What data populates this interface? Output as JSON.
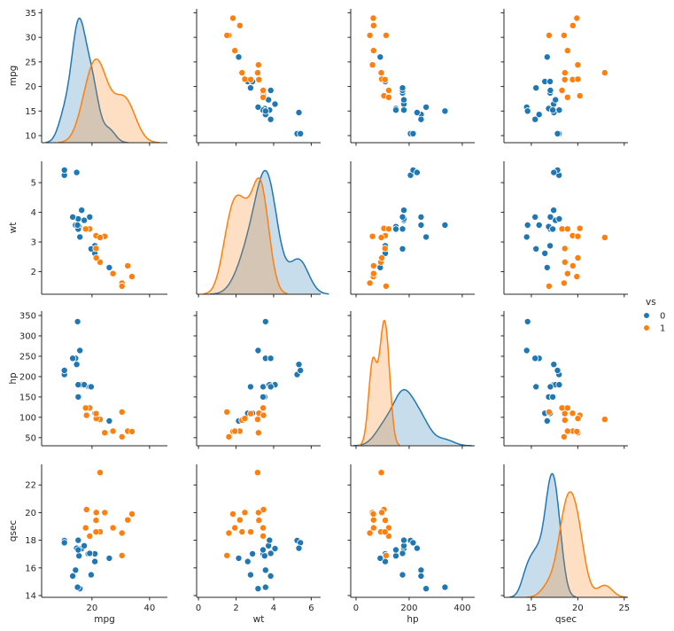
{
  "chart_data": {
    "type": "scatter",
    "subtype": "pairplot",
    "variables": [
      "mpg",
      "wt",
      "hp",
      "qsec"
    ],
    "hue": "vs",
    "legend": {
      "title": "vs",
      "entries": [
        "0",
        "1"
      ],
      "placement": "right"
    },
    "colors": {
      "0": "#1f77b4",
      "1": "#ff7f0e"
    },
    "diagonal": "kde",
    "grid": false,
    "axes": {
      "mpg": {
        "lim": [
          2.5,
          46.2
        ],
        "ticks": [
          20,
          40
        ],
        "yticks": [
          10,
          15,
          20,
          25,
          30,
          35
        ],
        "ylim": [
          8.56,
          35.8
        ]
      },
      "wt": {
        "lim": [
          -0.1,
          6.5
        ],
        "ticks": [
          0,
          2,
          4,
          6
        ],
        "yticks": [
          2,
          3,
          4,
          5
        ],
        "ylim": [
          1.24,
          5.72
        ]
      },
      "hp": {
        "lim": [
          -20,
          447
        ],
        "ticks": [
          0,
          200,
          400
        ],
        "yticks": [
          50,
          100,
          150,
          200,
          250,
          300,
          350
        ],
        "ylim": [
          30,
          361
        ]
      },
      "qsec": {
        "lim": [
          12.05,
          25.4
        ],
        "ticks": [
          15,
          20,
          25
        ],
        "yticks": [
          14,
          16,
          18,
          20,
          22
        ],
        "ylim": [
          13.87,
          23.49
        ]
      }
    },
    "records": [
      [
        21.0,
        2.62,
        110,
        16.46,
        0
      ],
      [
        21.0,
        2.875,
        110,
        17.02,
        0
      ],
      [
        22.8,
        2.32,
        93,
        18.61,
        1
      ],
      [
        21.4,
        3.215,
        110,
        19.44,
        1
      ],
      [
        18.7,
        3.44,
        175,
        17.02,
        0
      ],
      [
        18.1,
        3.46,
        105,
        20.22,
        1
      ],
      [
        14.3,
        3.57,
        245,
        15.84,
        0
      ],
      [
        24.4,
        3.19,
        62,
        20.0,
        1
      ],
      [
        22.8,
        3.15,
        95,
        22.9,
        1
      ],
      [
        19.2,
        3.44,
        123,
        18.3,
        1
      ],
      [
        17.8,
        3.44,
        123,
        18.9,
        1
      ],
      [
        16.4,
        4.07,
        180,
        17.4,
        0
      ],
      [
        17.3,
        3.73,
        180,
        17.6,
        0
      ],
      [
        15.2,
        3.78,
        180,
        18.0,
        0
      ],
      [
        10.4,
        5.25,
        205,
        17.98,
        0
      ],
      [
        10.4,
        5.424,
        215,
        17.82,
        0
      ],
      [
        14.7,
        5.345,
        230,
        17.42,
        0
      ],
      [
        32.4,
        2.2,
        66,
        19.47,
        1
      ],
      [
        30.4,
        1.615,
        52,
        18.52,
        1
      ],
      [
        33.9,
        1.835,
        65,
        19.9,
        1
      ],
      [
        21.5,
        2.465,
        97,
        20.01,
        1
      ],
      [
        15.5,
        3.52,
        150,
        16.87,
        0
      ],
      [
        15.2,
        3.435,
        150,
        17.3,
        0
      ],
      [
        13.3,
        3.84,
        245,
        15.41,
        0
      ],
      [
        19.2,
        3.845,
        175,
        17.05,
        0
      ],
      [
        27.3,
        1.935,
        66,
        18.9,
        1
      ],
      [
        26.0,
        2.14,
        91,
        16.7,
        0
      ],
      [
        30.4,
        1.513,
        113,
        16.9,
        1
      ],
      [
        15.8,
        3.17,
        264,
        14.5,
        0
      ],
      [
        19.7,
        2.77,
        175,
        15.5,
        0
      ],
      [
        15.0,
        3.57,
        335,
        14.6,
        0
      ],
      [
        21.4,
        2.78,
        109,
        18.6,
        1
      ]
    ]
  }
}
